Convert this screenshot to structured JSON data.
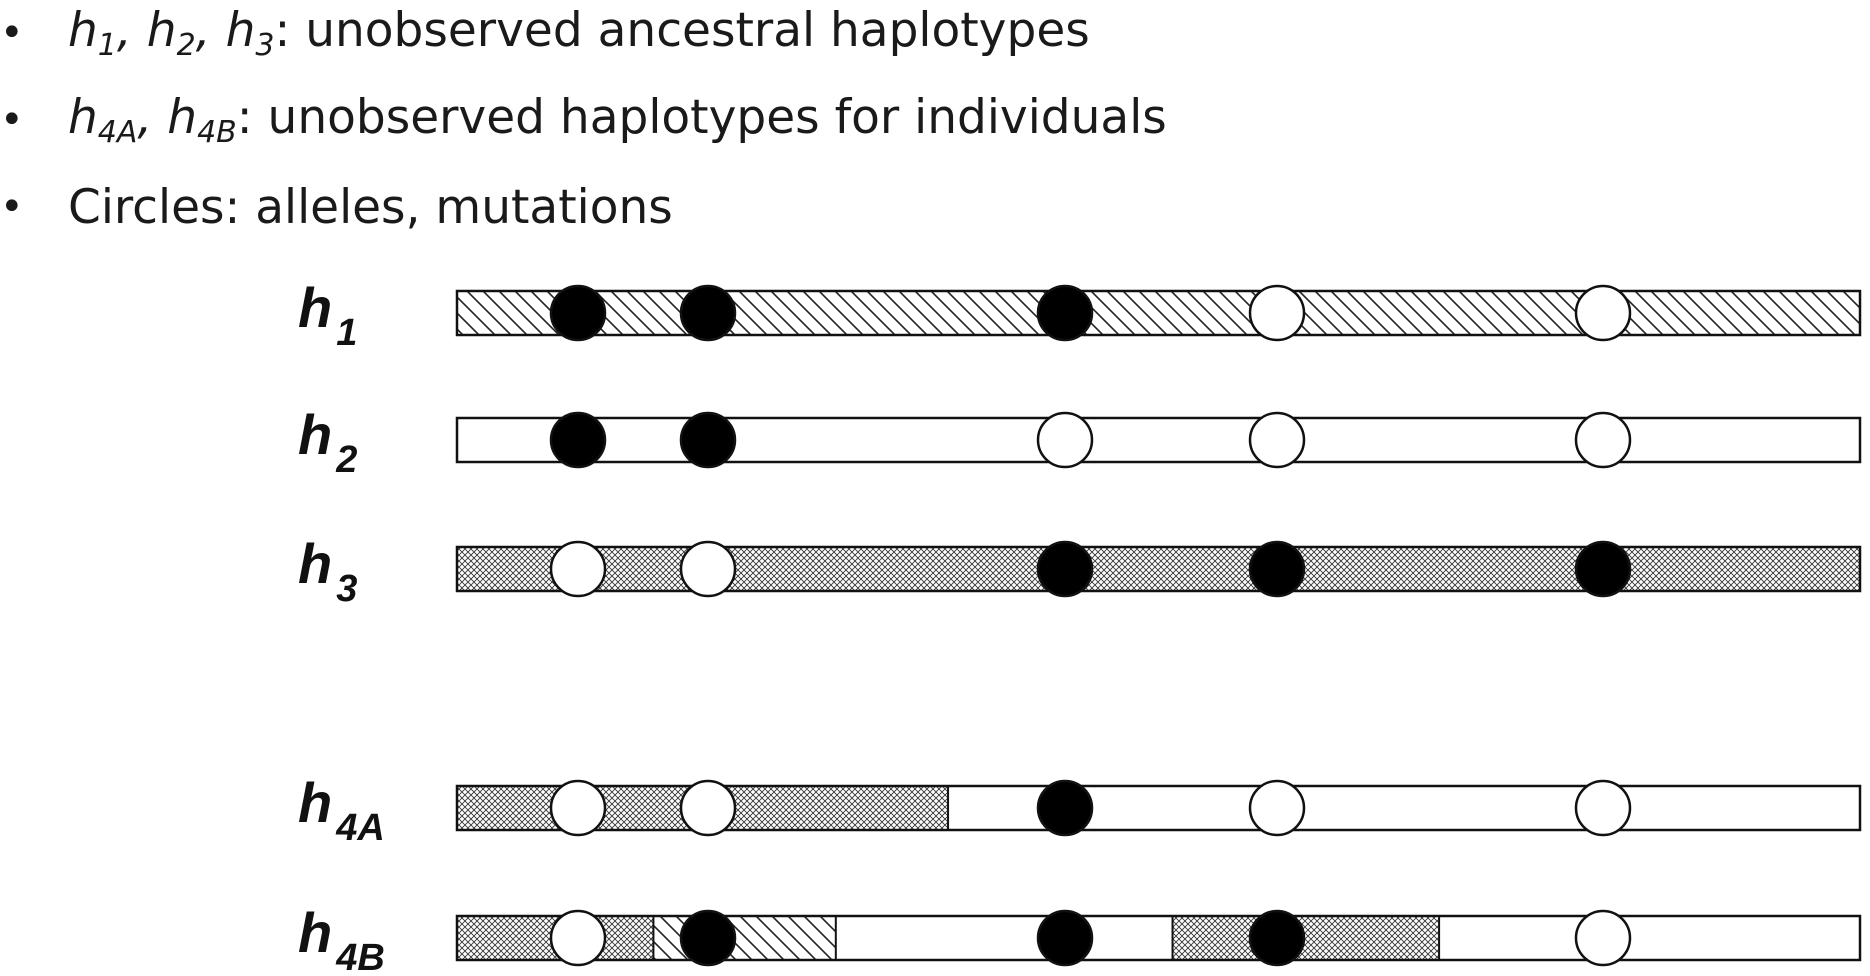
{
  "bullets": [
    {
      "parts": [
        {
          "t": "h",
          "i": true
        },
        {
          "t": "1",
          "i": true,
          "sub": true
        },
        {
          "t": ", ",
          "i": true
        },
        {
          "t": "h",
          "i": true
        },
        {
          "t": "2",
          "i": true,
          "sub": true
        },
        {
          "t": ", ",
          "i": true
        },
        {
          "t": "h",
          "i": true
        },
        {
          "t": "3",
          "i": true,
          "sub": true
        },
        {
          "t": ": unobserved ancestral haplotypes"
        }
      ]
    },
    {
      "parts": [
        {
          "t": "h",
          "i": true
        },
        {
          "t": "4A",
          "i": true,
          "sub": true
        },
        {
          "t": ", ",
          "i": true
        },
        {
          "t": "h",
          "i": true
        },
        {
          "t": "4B",
          "i": true,
          "sub": true
        },
        {
          "t": ": unobserved haplotypes for individuals"
        }
      ]
    },
    {
      "parts": [
        {
          "t": "Circles: alleles, mutations"
        }
      ]
    }
  ],
  "bullet_symbol": "•",
  "colors": {
    "stroke": "#111111",
    "filled_allele": "#000000",
    "open_allele": "#ffffff",
    "plain_fill": "#ffffff"
  },
  "patterns": [
    "diagonal-hatch",
    "crosshatch",
    "plain"
  ],
  "haplotypes": [
    {
      "id": "h1",
      "label_main": "h",
      "label_sub": "1",
      "segments": [
        {
          "start": 0,
          "end": 1,
          "pattern": "diagonal-hatch"
        }
      ],
      "alleles": [
        "filled",
        "filled",
        "filled",
        "open",
        "open"
      ]
    },
    {
      "id": "h2",
      "label_main": "h",
      "label_sub": "2",
      "segments": [
        {
          "start": 0,
          "end": 1,
          "pattern": "plain"
        }
      ],
      "alleles": [
        "filled",
        "filled",
        "open",
        "open",
        "open"
      ]
    },
    {
      "id": "h3",
      "label_main": "h",
      "label_sub": "3",
      "segments": [
        {
          "start": 0,
          "end": 1,
          "pattern": "crosshatch"
        }
      ],
      "alleles": [
        "open",
        "open",
        "filled",
        "filled",
        "filled"
      ]
    },
    {
      "id": "h4A",
      "label_main": "h",
      "label_sub": "4A",
      "segments": [
        {
          "start": 0,
          "end": 0.35,
          "pattern": "crosshatch"
        },
        {
          "start": 0.35,
          "end": 1,
          "pattern": "plain"
        }
      ],
      "alleles": [
        "open",
        "open",
        "filled",
        "open",
        "open"
      ]
    },
    {
      "id": "h4B",
      "label_main": "h",
      "label_sub": "4B",
      "segments": [
        {
          "start": 0,
          "end": 0.14,
          "pattern": "crosshatch"
        },
        {
          "start": 0.14,
          "end": 0.27,
          "pattern": "diagonal-hatch"
        },
        {
          "start": 0.27,
          "end": 0.51,
          "pattern": "plain"
        },
        {
          "start": 0.51,
          "end": 0.7,
          "pattern": "crosshatch"
        },
        {
          "start": 0.7,
          "end": 1,
          "pattern": "plain"
        }
      ],
      "alleles": [
        "open",
        "filled",
        "filled",
        "filled",
        "open"
      ]
    }
  ]
}
